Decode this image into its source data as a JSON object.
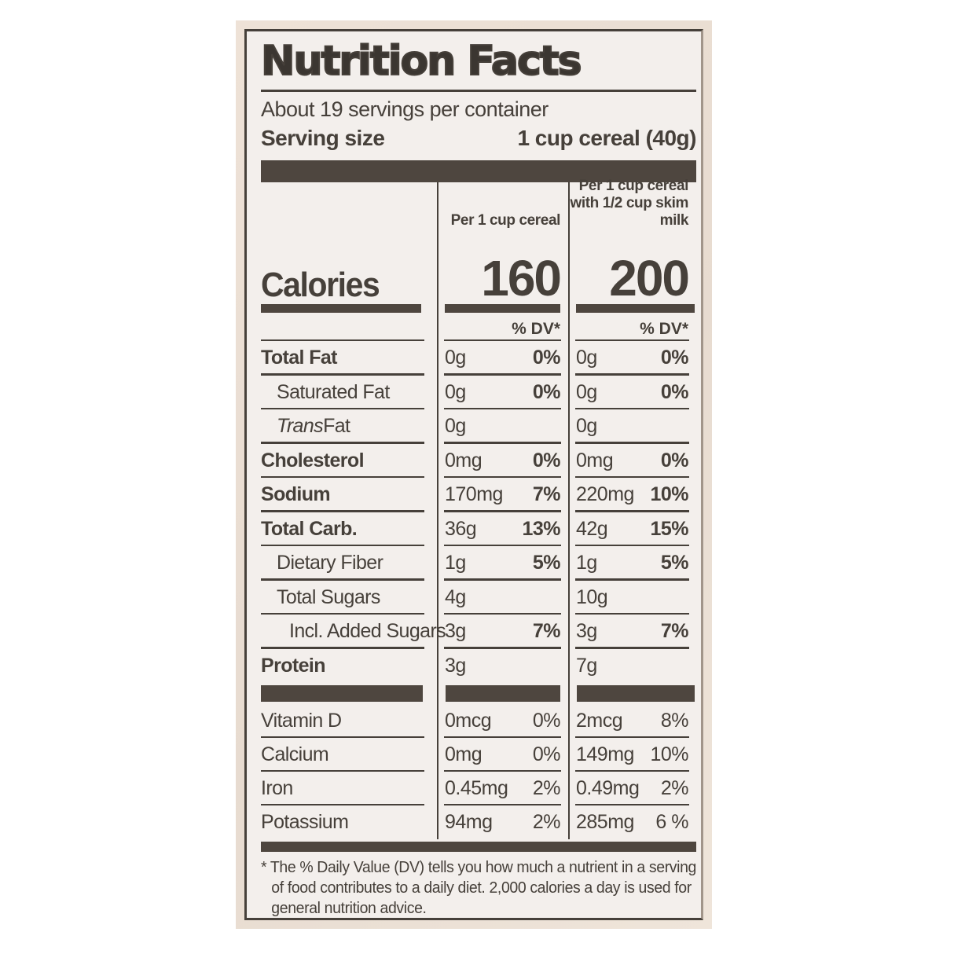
{
  "colors": {
    "ink": "#46403a",
    "label_background": "#f3efec",
    "page_background": "#ffffff"
  },
  "label": {
    "title": "Nutrition Facts",
    "servings_line": "About 19 servings per container",
    "serving_size_label": "Serving size",
    "serving_size_value": "1 cup cereal (40g)",
    "col1_header": "Per 1 cup cereal",
    "col2_header_line1": "Per 1 cup cereal",
    "col2_header_line2": "with 1/2 cup skim milk",
    "calories_label": "Calories",
    "calories_col1": "160",
    "calories_col2": "200",
    "dv_header_col1": "% DV*",
    "dv_header_col2": "% DV*",
    "rows": [
      {
        "name": "Total Fat",
        "v1": "0g",
        "p1": "0%",
        "v2": "0g",
        "p2": "0%"
      },
      {
        "name": "Saturated Fat",
        "v1": "0g",
        "p1": "0%",
        "v2": "0g",
        "p2": "0%"
      },
      {
        "name_italic": "Trans",
        "name_rest": " Fat",
        "v1": "0g",
        "p1": "",
        "v2": "0g",
        "p2": ""
      },
      {
        "name": "Cholesterol",
        "v1": "0mg",
        "p1": "0%",
        "v2": "0mg",
        "p2": "0%"
      },
      {
        "name": "Sodium",
        "v1": "170mg",
        "p1": "7%",
        "v2": "220mg",
        "p2": "10%"
      },
      {
        "name": "Total Carb.",
        "v1": "36g",
        "p1": "13%",
        "v2": "42g",
        "p2": "15%"
      },
      {
        "name": "Dietary Fiber",
        "v1": "1g",
        "p1": "5%",
        "v2": "1g",
        "p2": "5%"
      },
      {
        "name": "Total Sugars",
        "v1": "4g",
        "p1": "",
        "v2": "10g",
        "p2": ""
      },
      {
        "name": "Incl. Added Sugars",
        "v1": "3g",
        "p1": "7%",
        "v2": "3g",
        "p2": "7%"
      },
      {
        "name": "Protein",
        "v1": "3g",
        "p1": "",
        "v2": "7g",
        "p2": ""
      }
    ],
    "micronutrients": [
      {
        "name": "Vitamin D",
        "v1": "0mcg",
        "p1": "0%",
        "v2": "2mcg",
        "p2": "8%"
      },
      {
        "name": "Calcium",
        "v1": "0mg",
        "p1": "0%",
        "v2": "149mg",
        "p2": "10%"
      },
      {
        "name": "Iron",
        "v1": "0.45mg",
        "p1": "2%",
        "v2": "0.49mg",
        "p2": "2%"
      },
      {
        "name": "Potassium",
        "v1": "94mg",
        "p1": "2%",
        "v2": "285mg",
        "p2": "6 %"
      }
    ],
    "footnote_line1": "* The % Daily Value (DV) tells you how much a nutrient in a serving",
    "footnote_line2": "of food contributes to a daily diet. 2,000 calories a day is used for",
    "footnote_line3": "general nutrition advice."
  }
}
